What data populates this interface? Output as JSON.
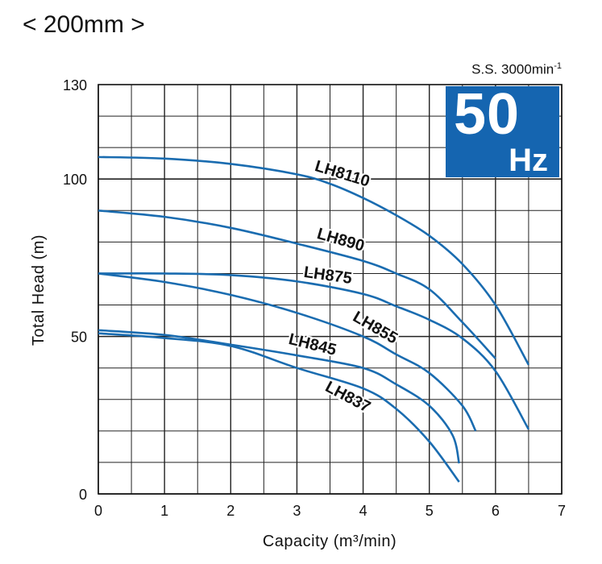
{
  "header": {
    "title": "< 200mm >",
    "speed": "S.S. 3000min",
    "speed_sup": "-1",
    "freq_value": "50",
    "freq_unit": "Hz"
  },
  "colors": {
    "curve": "#1a6cb0",
    "badge": "#1565b0",
    "grid": "#222222"
  },
  "chart_data": {
    "type": "line",
    "xlabel": "Capacity (m³/min)",
    "ylabel": "Total Head (m)",
    "xlim": [
      0,
      7
    ],
    "ylim": [
      0,
      130
    ],
    "x_ticks": [
      "0",
      "1",
      "2",
      "3",
      "4",
      "5",
      "6",
      "7"
    ],
    "y_ticks": [
      "0",
      "50",
      "100",
      "130"
    ],
    "grid": true,
    "series": [
      {
        "name": "LH8110",
        "x": [
          0,
          1,
          2,
          3,
          3.5,
          4,
          4.5,
          5,
          5.5,
          6,
          6.5
        ],
        "y": [
          107,
          106.5,
          104.8,
          101.5,
          98.5,
          94,
          88.5,
          82,
          73,
          60,
          41
        ]
      },
      {
        "name": "LH890",
        "x": [
          0,
          1,
          2,
          3,
          4,
          4.5,
          5,
          5.5,
          6
        ],
        "y": [
          90,
          88,
          84.5,
          79.5,
          74,
          70,
          65,
          54.5,
          43
        ]
      },
      {
        "name": "LH875",
        "x": [
          0,
          1,
          2,
          3,
          4,
          4.5,
          5,
          5.5,
          6,
          6.5
        ],
        "y": [
          70,
          70,
          69.5,
          67.5,
          63.5,
          59.6,
          55.3,
          49.4,
          39,
          20.5
        ]
      },
      {
        "name": "LH855",
        "x": [
          0,
          1,
          2,
          3,
          4,
          4.5,
          5,
          5.5,
          5.7
        ],
        "y": [
          70,
          67.3,
          63.2,
          57.5,
          50,
          44.3,
          38.4,
          28,
          20
        ]
      },
      {
        "name": "LH845",
        "x": [
          0,
          1,
          2,
          3,
          4,
          4.5,
          5,
          5.35,
          5.45
        ],
        "y": [
          52,
          50.5,
          47.4,
          44,
          40,
          34.8,
          28,
          18.7,
          9.7
        ]
      },
      {
        "name": "LH837",
        "x": [
          0,
          1,
          2,
          3,
          4,
          4.5,
          5,
          5.45
        ],
        "y": [
          51,
          49.5,
          47,
          40,
          33.5,
          27,
          16.6,
          3.8
        ]
      }
    ]
  }
}
